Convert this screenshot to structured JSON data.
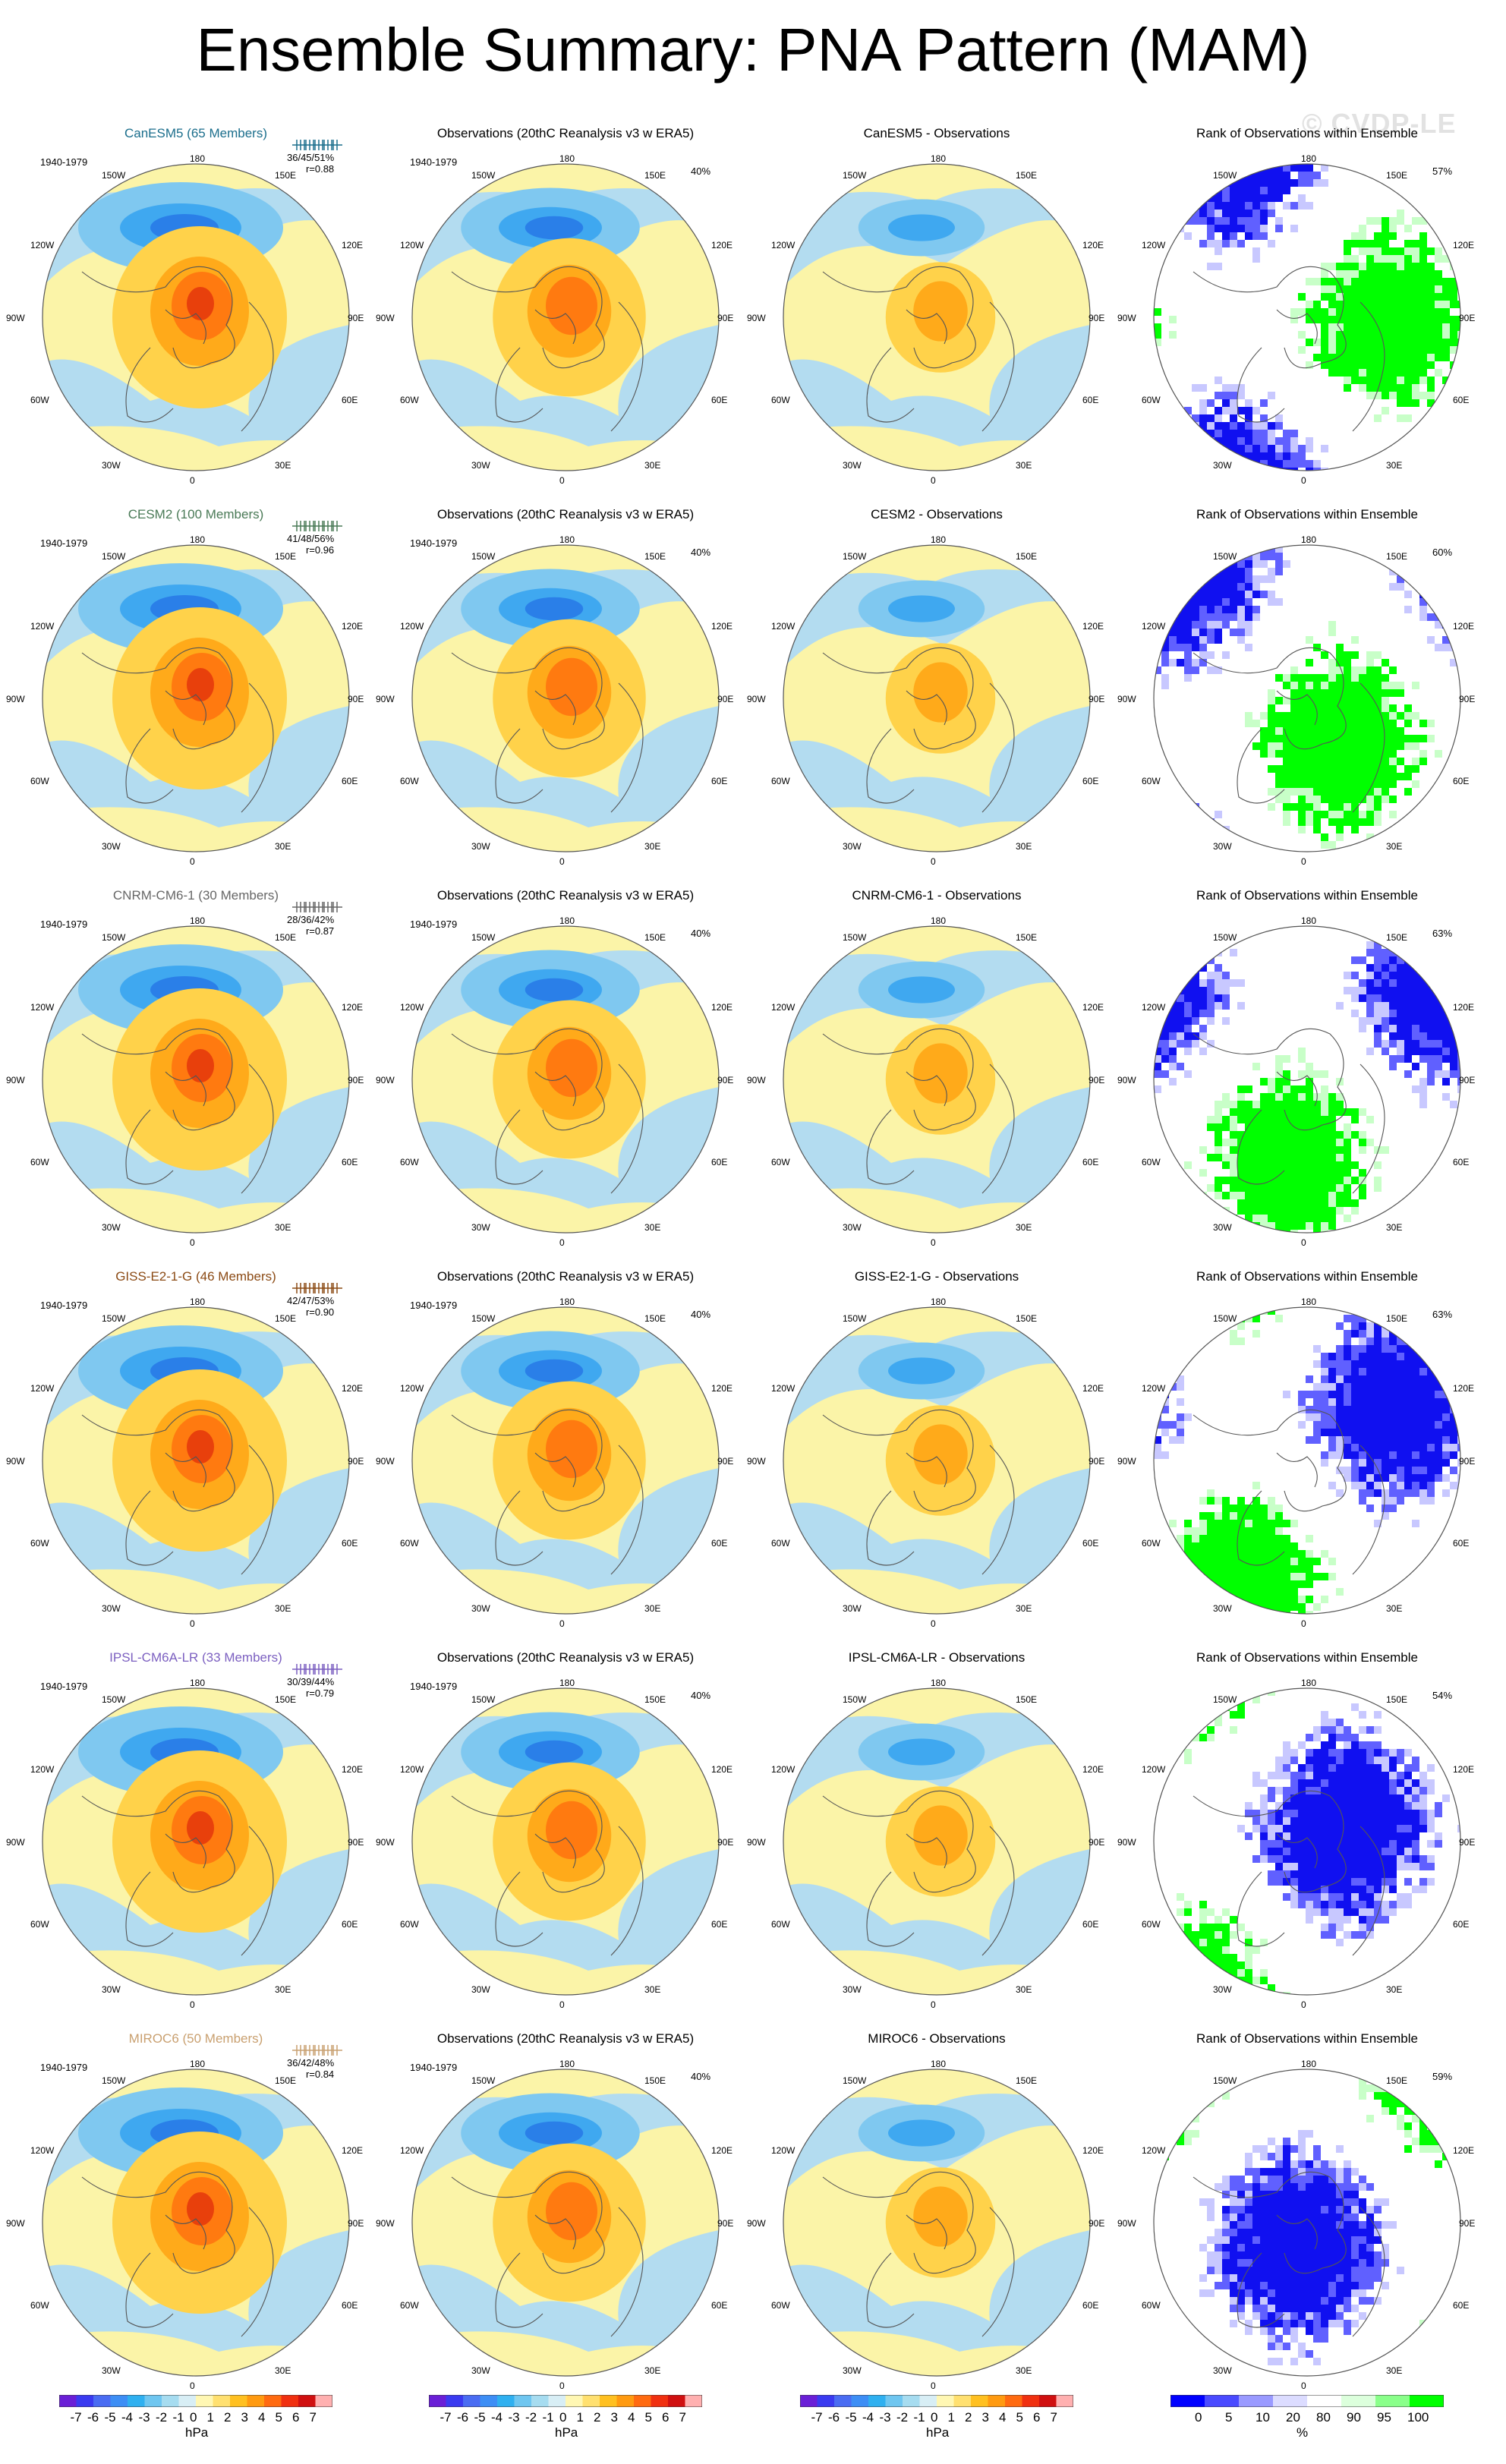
{
  "title": "Ensemble Summary: PNA Pattern (MAM)",
  "watermark": "© CVDP-LE",
  "period": "1940-1979",
  "columns": {
    "observations_title": "Observations (20thC Reanalysis v3 w ERA5)",
    "difference_suffix": " - Observations",
    "rank_title": "Rank of Observations within Ensemble"
  },
  "obs_pct": "40%",
  "lon_labels": {
    "top": "180",
    "nw": "150W",
    "ne": "150E",
    "wnw": "120W",
    "ene": "120E",
    "w": "90W",
    "e": "90E",
    "wsw": "60W",
    "esw": "60E",
    "sw": "30W",
    "se": "30E",
    "bottom": "0"
  },
  "rows": [
    {
      "model": "CanESM5",
      "members_label": "CanESM5 (65 Members)",
      "color": "#1b6e8c",
      "pct_range": "36/45/51%",
      "r": "r=0.88",
      "rank_pct": "57%"
    },
    {
      "model": "CESM2",
      "members_label": "CESM2 (100 Members)",
      "color": "#4a7a57",
      "pct_range": "41/48/56%",
      "r": "r=0.96",
      "rank_pct": "60%"
    },
    {
      "model": "CNRM-CM6-1",
      "members_label": "CNRM-CM6-1 (30 Members)",
      "color": "#666666",
      "pct_range": "28/36/42%",
      "r": "r=0.87",
      "rank_pct": "63%"
    },
    {
      "model": "GISS-E2-1-G",
      "members_label": "GISS-E2-1-G (46 Members)",
      "color": "#8b4a14",
      "pct_range": "42/47/53%",
      "r": "r=0.90",
      "rank_pct": "63%"
    },
    {
      "model": "IPSL-CM6A-LR",
      "members_label": "IPSL-CM6A-LR (33 Members)",
      "color": "#7b5fc0",
      "pct_range": "30/39/44%",
      "r": "r=0.79",
      "rank_pct": "54%"
    },
    {
      "model": "MIROC6",
      "members_label": "MIROC6 (50 Members)",
      "color": "#c9a070",
      "pct_range": "36/42/48%",
      "r": "r=0.84",
      "rank_pct": "59%"
    }
  ],
  "colorbar_hpa": {
    "labels": [
      "-7",
      "-6",
      "-5",
      "-4",
      "-3",
      "-2",
      "-1",
      "0",
      "1",
      "2",
      "3",
      "4",
      "5",
      "6",
      "7"
    ],
    "colors": [
      "#6a1fd6",
      "#3a3af0",
      "#4a6cf2",
      "#3d8ef5",
      "#2fb0f0",
      "#6fc6f0",
      "#a6dcf0",
      "#d8eef5",
      "#fff7b3",
      "#ffe070",
      "#ffc020",
      "#ff9a10",
      "#ff6a10",
      "#f03010",
      "#d01010",
      "#ffb0b0"
    ],
    "unit": "hPa"
  },
  "colorbar_rank": {
    "labels": [
      "0",
      "5",
      "10",
      "20",
      "80",
      "90",
      "95",
      "100"
    ],
    "colors": [
      "#0000ff",
      "#4a4aff",
      "#9a9aff",
      "#dcdcff",
      "#ffffff",
      "#dcffdc",
      "#8aff8a",
      "#00ff00"
    ],
    "unit": "%"
  },
  "palette": {
    "ocean": "#b3dcf0",
    "land_yellow": "#fbf4a8",
    "low1": "#7fc8f0",
    "low2": "#3fa8f0",
    "low3": "#2a7fe8",
    "high1": "#ffd24a",
    "high2": "#ffaa1a",
    "high3": "#ff7a10",
    "high4": "#e8400c",
    "rank_green": "#00ff00",
    "rank_blue": "#1010f0",
    "rank_lightblue": "#c8c8ff"
  }
}
